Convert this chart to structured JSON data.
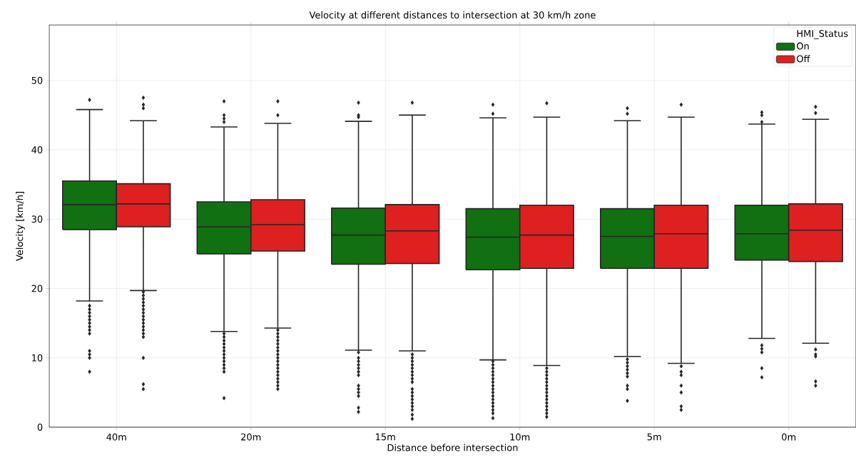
{
  "chart_data": {
    "type": "box",
    "title": "Velocity at different distances to intersection at 30 km/h zone",
    "xlabel": "Distance before intersection",
    "ylabel": "Velocity [km/h]",
    "legend_title": "HMI_Status",
    "categories": [
      "40m",
      "20m",
      "15m",
      "10m",
      "5m",
      "0m"
    ],
    "ylim": [
      0,
      58
    ],
    "yticks": [
      0,
      10,
      20,
      30,
      40,
      50
    ],
    "grid": true,
    "legend": "top right",
    "marker": "diamond",
    "series": [
      {
        "name": "On",
        "color": "#117011",
        "boxes": [
          {
            "low": 18.2,
            "q1": 28.5,
            "median": 32.1,
            "q3": 35.5,
            "high": 45.8,
            "outliers": [
              47.2,
              17.5,
              17,
              16.5,
              16,
              15.5,
              15,
              14.5,
              14,
              13.5,
              11,
              10.5,
              10,
              8
            ]
          },
          {
            "low": 13.8,
            "q1": 25.0,
            "median": 28.9,
            "q3": 32.5,
            "high": 43.3,
            "outliers": [
              47,
              45,
              44.5,
              44,
              13.5,
              13,
              12.5,
              12,
              11.5,
              11,
              10.5,
              10,
              9.5,
              9,
              8.5,
              8,
              4.2
            ]
          },
          {
            "low": 11.1,
            "q1": 23.5,
            "median": 27.7,
            "q3": 31.6,
            "high": 44.1,
            "outliers": [
              46.8,
              45,
              44.7,
              10.8,
              10,
              9.5,
              9,
              8.5,
              8,
              7.5,
              6,
              5.5,
              5,
              4.5,
              2.8,
              2.2
            ]
          },
          {
            "low": 9.7,
            "q1": 22.7,
            "median": 27.4,
            "q3": 31.5,
            "high": 44.6,
            "outliers": [
              46.5,
              45.2,
              9.5,
              9,
              8.5,
              8,
              7.5,
              7,
              6.5,
              6,
              5.5,
              5,
              4.5,
              4,
              3.5,
              3,
              2.5,
              2,
              1.3
            ]
          },
          {
            "low": 10.2,
            "q1": 22.9,
            "median": 27.5,
            "q3": 31.5,
            "high": 44.2,
            "outliers": [
              46,
              45.2,
              9.8,
              9.3,
              8.8,
              8.3,
              7.8,
              7.3,
              6,
              5.5,
              3.8
            ]
          },
          {
            "low": 12.8,
            "q1": 24.1,
            "median": 27.9,
            "q3": 32.0,
            "high": 43.7,
            "outliers": [
              45.4,
              45,
              44,
              11.8,
              11.3,
              10.8,
              8.5,
              7.2
            ]
          }
        ]
      },
      {
        "name": "Off",
        "color": "#de2020",
        "boxes": [
          {
            "low": 19.7,
            "q1": 28.9,
            "median": 32.2,
            "q3": 35.1,
            "high": 44.2,
            "outliers": [
              47.5,
              46.5,
              46,
              19.5,
              19,
              18.5,
              18,
              17.5,
              17,
              16.5,
              16,
              15.5,
              15,
              14.5,
              14,
              13.5,
              13,
              10,
              6.2,
              5.5
            ]
          },
          {
            "low": 14.3,
            "q1": 25.4,
            "median": 29.2,
            "q3": 32.8,
            "high": 43.8,
            "outliers": [
              47,
              45,
              14,
              13.5,
              13,
              12.5,
              12,
              11.5,
              11,
              10.5,
              10,
              9.5,
              9,
              8.5,
              8,
              7.5,
              7,
              6.5,
              6,
              5.5
            ]
          },
          {
            "low": 11.0,
            "q1": 23.6,
            "median": 28.3,
            "q3": 32.1,
            "high": 45.0,
            "outliers": [
              46.8,
              10.5,
              10,
              9.5,
              9,
              8.5,
              8,
              7.5,
              7,
              6.5,
              5.5,
              5,
              4.5,
              4,
              3.5,
              3,
              2.5,
              1.8,
              1.2
            ]
          },
          {
            "low": 8.9,
            "q1": 22.9,
            "median": 27.7,
            "q3": 32.0,
            "high": 44.7,
            "outliers": [
              46.7,
              8.5,
              8,
              7.5,
              7,
              6.5,
              6,
              5.5,
              5,
              4.5,
              4,
              3.5,
              3,
              2.5,
              2,
              1.5
            ]
          },
          {
            "low": 9.2,
            "q1": 22.9,
            "median": 27.9,
            "q3": 32.0,
            "high": 44.7,
            "outliers": [
              46.5,
              8.8,
              8,
              7.5,
              6,
              5,
              3,
              2.5
            ]
          },
          {
            "low": 12.1,
            "q1": 23.9,
            "median": 28.4,
            "q3": 32.2,
            "high": 44.4,
            "outliers": [
              46.2,
              45.3,
              11.2,
              10.5,
              10.2,
              6.6,
              6.0
            ]
          }
        ]
      }
    ]
  }
}
